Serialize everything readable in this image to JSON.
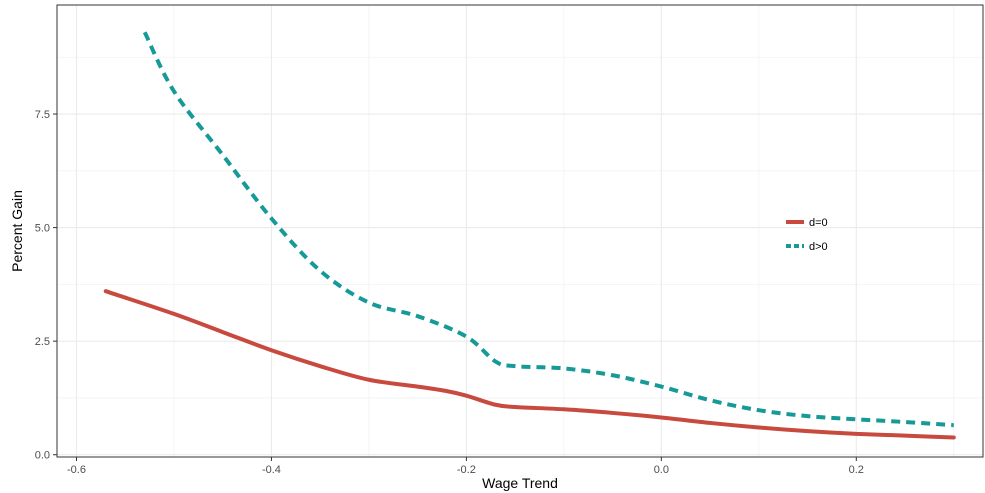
{
  "chart_data": {
    "type": "line",
    "xlabel": "Wage Trend",
    "ylabel": "Percent Gain",
    "xlim": [
      -0.62,
      0.33
    ],
    "ylim": [
      -0.05,
      9.9
    ],
    "x_ticks": [
      -0.6,
      -0.4,
      -0.2,
      0.0,
      0.2
    ],
    "x_tick_labels": [
      "-0.6",
      "-0.4",
      "-0.2",
      "0.0",
      "0.2"
    ],
    "y_ticks": [
      0,
      2.5,
      5.0,
      7.5
    ],
    "y_tick_labels": [
      "0.0",
      "2.5",
      "5.0",
      "7.5"
    ],
    "grid": true,
    "legend_position": "right",
    "series": [
      {
        "name": "d=0",
        "color": "#C8493E",
        "style": "solid",
        "x": [
          -0.57,
          -0.5,
          -0.45,
          -0.4,
          -0.35,
          -0.3,
          -0.25,
          -0.22,
          -0.2,
          -0.17,
          -0.15,
          -0.1,
          -0.05,
          0.0,
          0.05,
          0.1,
          0.15,
          0.2,
          0.25,
          0.3
        ],
        "y": [
          3.6,
          3.1,
          2.7,
          2.3,
          1.95,
          1.65,
          1.5,
          1.4,
          1.3,
          1.1,
          1.05,
          1.0,
          0.92,
          0.82,
          0.7,
          0.6,
          0.52,
          0.46,
          0.42,
          0.38
        ]
      },
      {
        "name": "d>0",
        "color": "#159A98",
        "style": "dashed",
        "x": [
          -0.53,
          -0.5,
          -0.45,
          -0.4,
          -0.35,
          -0.3,
          -0.25,
          -0.2,
          -0.17,
          -0.15,
          -0.1,
          -0.05,
          0.0,
          0.05,
          0.1,
          0.15,
          0.2,
          0.25,
          0.3
        ],
        "y": [
          9.3,
          8.0,
          6.6,
          5.2,
          4.05,
          3.35,
          3.05,
          2.6,
          2.05,
          1.95,
          1.9,
          1.75,
          1.5,
          1.2,
          0.98,
          0.85,
          0.78,
          0.72,
          0.65
        ]
      }
    ]
  }
}
